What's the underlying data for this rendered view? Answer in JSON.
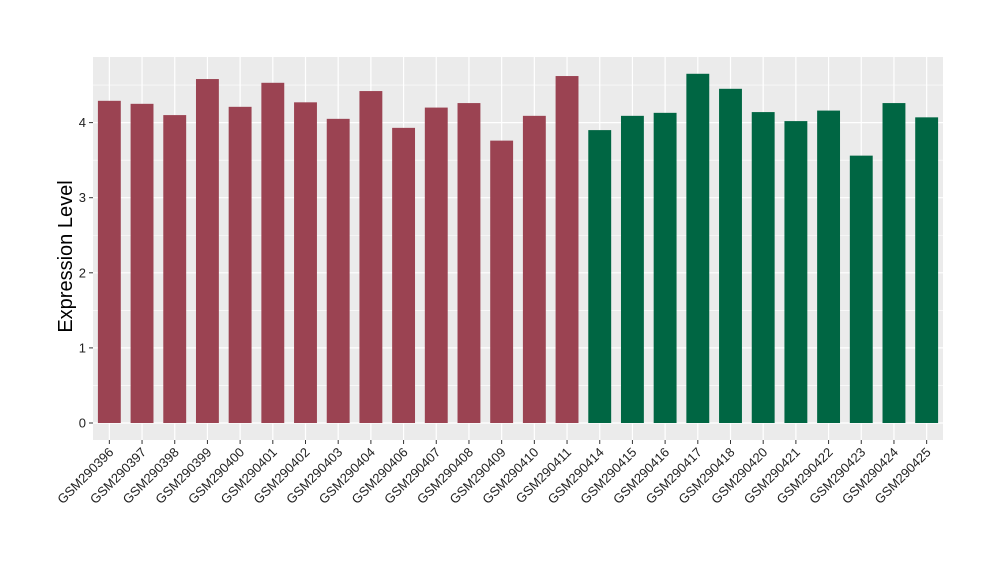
{
  "chart_data": {
    "type": "bar",
    "title": "",
    "xlabel": "",
    "ylabel": "Expression Level",
    "ylim": [
      0,
      4.85
    ],
    "yticks": [
      0,
      1,
      2,
      3,
      4
    ],
    "grid": true,
    "background_color": "#EBEBEB",
    "gridline_color": "#FFFFFF",
    "categories": [
      "GSM290396",
      "GSM290397",
      "GSM290398",
      "GSM290399",
      "GSM290400",
      "GSM290401",
      "GSM290402",
      "GSM290403",
      "GSM290404",
      "GSM290406",
      "GSM290407",
      "GSM290408",
      "GSM290409",
      "GSM290410",
      "GSM290411",
      "GSM290414",
      "GSM290415",
      "GSM290416",
      "GSM290417",
      "GSM290418",
      "GSM290420",
      "GSM290421",
      "GSM290422",
      "GSM290423",
      "GSM290424",
      "GSM290425"
    ],
    "values": [
      4.29,
      4.25,
      4.1,
      4.58,
      4.21,
      4.53,
      4.27,
      4.05,
      4.42,
      3.93,
      4.2,
      4.26,
      3.76,
      4.09,
      4.62,
      3.9,
      4.09,
      4.13,
      4.65,
      4.45,
      4.14,
      4.02,
      4.16,
      3.56,
      4.26,
      4.07
    ],
    "bar_colors": [
      "#9B4352",
      "#9B4352",
      "#9B4352",
      "#9B4352",
      "#9B4352",
      "#9B4352",
      "#9B4352",
      "#9B4352",
      "#9B4352",
      "#9B4352",
      "#9B4352",
      "#9B4352",
      "#9B4352",
      "#9B4352",
      "#9B4352",
      "#006643",
      "#006643",
      "#006643",
      "#006643",
      "#006643",
      "#006643",
      "#006643",
      "#006643",
      "#006643",
      "#006643",
      "#006643"
    ]
  }
}
